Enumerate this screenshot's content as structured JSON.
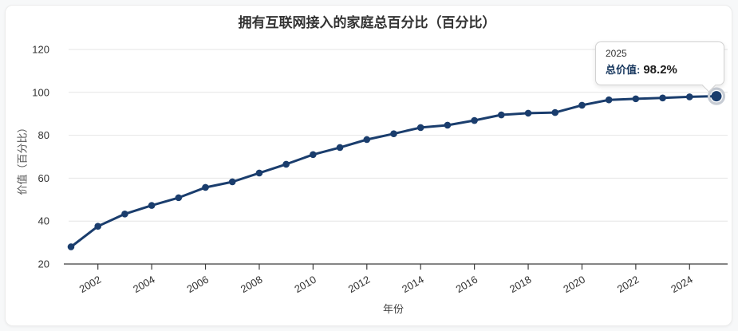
{
  "page": {
    "background_color": "#f7f8f9",
    "card_color": "#ffffff"
  },
  "chart": {
    "title": "拥有互联网接入的家庭总百分比（百分比）",
    "x_axis_title": "年份",
    "y_axis_title": "价值（百分比）"
  },
  "tooltip": {
    "year": "2025",
    "label": "总价值:",
    "value": "98.2%"
  },
  "chart_data": {
    "type": "line",
    "title": "拥有互联网接入的家庭总百分比（百分比）",
    "xlabel": "年份",
    "ylabel": "价值（百分比）",
    "series_name": "总价值",
    "x": [
      2001,
      2002,
      2003,
      2004,
      2005,
      2006,
      2007,
      2008,
      2009,
      2010,
      2011,
      2012,
      2013,
      2014,
      2015,
      2016,
      2017,
      2018,
      2019,
      2020,
      2021,
      2022,
      2023,
      2024,
      2025
    ],
    "values": [
      28.0,
      37.6,
      43.3,
      47.3,
      50.9,
      55.7,
      58.3,
      62.4,
      66.5,
      71.0,
      74.3,
      78.0,
      80.7,
      83.6,
      84.7,
      86.9,
      89.5,
      90.3,
      90.6,
      94.0,
      96.5,
      97.0,
      97.4,
      97.9,
      98.2
    ],
    "xticks": [
      2002,
      2004,
      2006,
      2008,
      2010,
      2012,
      2014,
      2016,
      2018,
      2020,
      2022,
      2024
    ],
    "yticks": [
      20,
      40,
      60,
      80,
      100,
      120
    ],
    "ylim": [
      20,
      120
    ],
    "grid": "horizontal",
    "legend": "none",
    "line_color": "#1a3d6d",
    "marker_color": "#1a3d6d",
    "highlight_ring_color": "#c7ccd4",
    "highlighted_point": {
      "x": 2025,
      "value": 98.2
    }
  }
}
